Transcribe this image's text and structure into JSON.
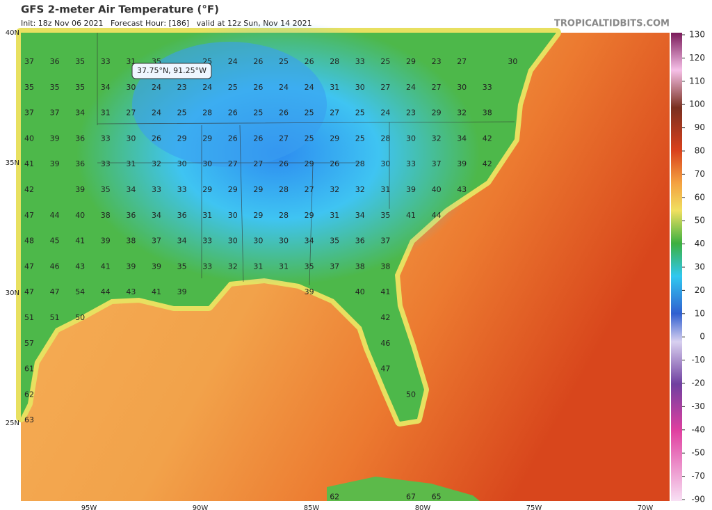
{
  "header": {
    "title": "GFS 2-meter Air Temperature (°F)",
    "subtitle": "Init: 18z Nov 06 2021   Forecast Hour: [186]   valid at 12z Sun, Nov 14 2021",
    "source": "TROPICALTIDBITS.COM"
  },
  "map": {
    "tooltip": "37.75°N, 91.25°W",
    "lat_labels": [
      "40N",
      "35N",
      "30N",
      "25N"
    ],
    "lon_labels": [
      "95W",
      "90W",
      "85W",
      "80W",
      "75W",
      "70W"
    ],
    "temperatures": [
      [
        37,
        36,
        35,
        33,
        31,
        35,
        null,
        25,
        24,
        26,
        25,
        26,
        28,
        33,
        25,
        29,
        23,
        27,
        null,
        30
      ],
      [
        35,
        35,
        35,
        34,
        30,
        24,
        23,
        24,
        25,
        26,
        24,
        24,
        31,
        30,
        27,
        24,
        27,
        30,
        33
      ],
      [
        37,
        37,
        34,
        31,
        27,
        24,
        25,
        28,
        26,
        25,
        26,
        25,
        27,
        25,
        24,
        23,
        29,
        32,
        38
      ],
      [
        40,
        39,
        36,
        33,
        30,
        26,
        29,
        29,
        26,
        26,
        27,
        25,
        29,
        25,
        28,
        30,
        32,
        34,
        42
      ],
      [
        41,
        39,
        36,
        33,
        31,
        32,
        30,
        30,
        27,
        27,
        26,
        29,
        26,
        28,
        30,
        33,
        37,
        39,
        42
      ],
      [
        42,
        null,
        39,
        35,
        34,
        33,
        33,
        29,
        29,
        29,
        28,
        27,
        32,
        32,
        31,
        39,
        40,
        43
      ],
      [
        47,
        44,
        40,
        38,
        36,
        34,
        36,
        31,
        30,
        29,
        28,
        29,
        31,
        34,
        35,
        41,
        44
      ],
      [
        48,
        45,
        41,
        39,
        38,
        37,
        34,
        33,
        30,
        30,
        30,
        34,
        35,
        36,
        37
      ],
      [
        47,
        46,
        43,
        41,
        39,
        39,
        35,
        33,
        32,
        31,
        31,
        35,
        37,
        38,
        38
      ],
      [
        47,
        47,
        54,
        44,
        43,
        41,
        39,
        null,
        null,
        null,
        null,
        39,
        null,
        40,
        41
      ],
      [
        51,
        51,
        50,
        null,
        null,
        null,
        null,
        null,
        null,
        null,
        null,
        null,
        null,
        null,
        42
      ],
      [
        57,
        null,
        null,
        null,
        null,
        null,
        null,
        null,
        null,
        null,
        null,
        null,
        null,
        null,
        46
      ],
      [
        61,
        null,
        null,
        null,
        null,
        null,
        null,
        null,
        null,
        null,
        null,
        null,
        null,
        null,
        47
      ],
      [
        62,
        null,
        null,
        null,
        null,
        null,
        null,
        null,
        null,
        null,
        null,
        null,
        null,
        null,
        null,
        50
      ],
      [
        63
      ],
      [],
      [],
      [
        null,
        null,
        null,
        null,
        null,
        null,
        null,
        null,
        null,
        null,
        null,
        null,
        62,
        null,
        null,
        67,
        65
      ]
    ]
  },
  "colorbar": {
    "labels": [
      130,
      120,
      110,
      100,
      90,
      80,
      70,
      60,
      50,
      40,
      30,
      20,
      10,
      0,
      -10,
      -20,
      -30,
      -40,
      -50,
      -70,
      -90
    ]
  }
}
